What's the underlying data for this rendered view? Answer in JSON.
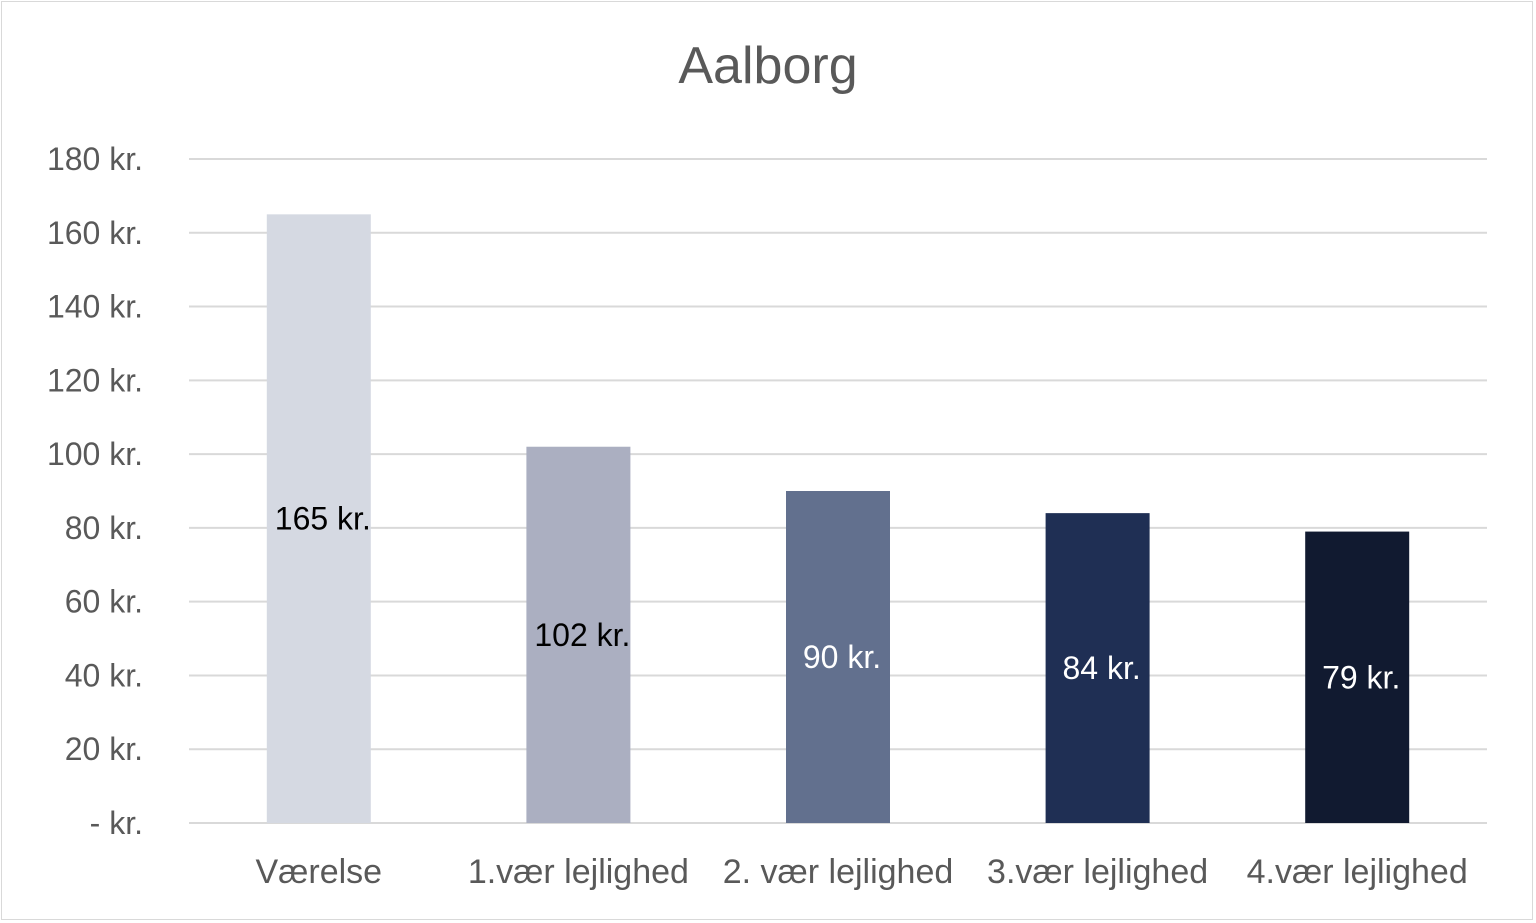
{
  "chart_data": {
    "type": "bar",
    "title": "Aalborg",
    "xlabel": "",
    "ylabel": "",
    "categories": [
      "Værelse",
      "1.vær lejlighed",
      "2. vær lejlighed",
      "3.vær lejlighed",
      "4.vær lejlighed"
    ],
    "values": [
      165,
      102,
      90,
      84,
      79
    ],
    "data_labels": [
      "165 kr.",
      "102 kr.",
      "90 kr.",
      "84 kr.",
      "79 kr."
    ],
    "bar_colors": [
      "#d5d9e2",
      "#abafc1",
      "#62708e",
      "#1f2f54",
      "#111a30"
    ],
    "data_label_colors": [
      "#000000",
      "#000000",
      "#ffffff",
      "#ffffff",
      "#ffffff"
    ],
    "ylim": [
      0,
      180
    ],
    "yticks": [
      0,
      20,
      40,
      60,
      80,
      100,
      120,
      140,
      160,
      180
    ],
    "ytick_labels": [
      "-   kr.",
      "20 kr.",
      "40 kr.",
      "60 kr.",
      "80 kr.",
      "100 kr.",
      "120 kr.",
      "140 kr.",
      "160 kr.",
      "180 kr."
    ],
    "grid": true,
    "grid_color": "#d9d9d9",
    "legend": "none"
  }
}
